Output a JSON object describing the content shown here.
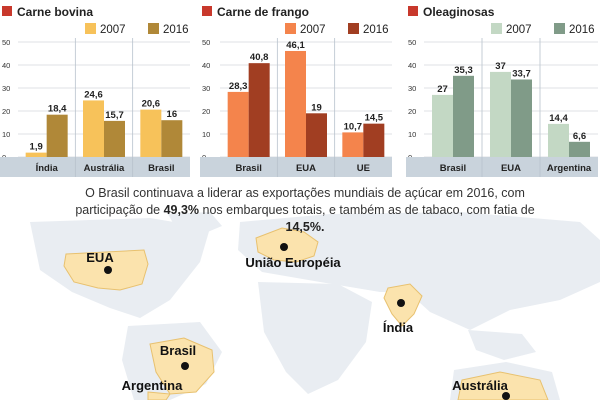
{
  "colors": {
    "bar_axis_bg": "#c9d3dc",
    "title_square": "#c8382c",
    "map_land": "#e9edf2",
    "region_fill": "#fbe3ad",
    "region_stroke": "#e8c16f",
    "city_dot": "#111111"
  },
  "chart_data": [
    {
      "type": "bar",
      "title": "Carne bovina",
      "categories": [
        "Índia",
        "Austrália",
        "Brasil"
      ],
      "series": [
        {
          "name": "2007",
          "color": "#f7c25a",
          "values": [
            1.9,
            24.6,
            20.6
          ],
          "labels": [
            "1,9",
            "24,6",
            "20,6"
          ]
        },
        {
          "name": "2016",
          "color": "#b08838",
          "values": [
            18.4,
            15.7,
            16
          ],
          "labels": [
            "18,4",
            "15,7",
            "16"
          ]
        }
      ],
      "yticks": [
        "0",
        "10",
        "20",
        "30",
        "40",
        "50"
      ],
      "ylim": [
        0,
        50
      ]
    },
    {
      "type": "bar",
      "title": "Carne de frango",
      "categories": [
        "Brasil",
        "EUA",
        "UE"
      ],
      "series": [
        {
          "name": "2007",
          "color": "#f4844c",
          "values": [
            28.3,
            46.1,
            10.7
          ],
          "labels": [
            "28,3",
            "46,1",
            "10,7"
          ]
        },
        {
          "name": "2016",
          "color": "#a13e22",
          "values": [
            40.8,
            19,
            14.5
          ],
          "labels": [
            "40,8",
            "19",
            "14,5"
          ]
        }
      ],
      "yticks": [
        "0",
        "10",
        "20",
        "30",
        "40",
        "50"
      ],
      "ylim": [
        0,
        50
      ]
    },
    {
      "type": "bar",
      "title": "Oleaginosas",
      "categories": [
        "Brasil",
        "EUA",
        "Argentina"
      ],
      "series": [
        {
          "name": "2007",
          "color": "#c3d8c4",
          "values": [
            27,
            37,
            14.4
          ],
          "labels": [
            "27",
            "37",
            "14,4"
          ]
        },
        {
          "name": "2016",
          "color": "#809b88",
          "values": [
            35.3,
            33.7,
            6.6
          ],
          "labels": [
            "35,3",
            "33,7",
            "6,6"
          ]
        }
      ],
      "yticks": [
        "0",
        "10",
        "20",
        "30",
        "40",
        "50"
      ],
      "ylim": [
        0,
        50
      ]
    }
  ],
  "caption": {
    "part1": "O Brasil continuava a liderar as exportações mundiais de açúcar em 2016, com participação de ",
    "bold1": "49,3%",
    "part2": " nos embarques totais, e também as de tabaco, com fatia de ",
    "bold2": "14,5%."
  },
  "map": {
    "labels": [
      {
        "key": "eua",
        "text": "EUA"
      },
      {
        "key": "ue",
        "text": "União Européia"
      },
      {
        "key": "india",
        "text": "Índia"
      },
      {
        "key": "brasil",
        "text": "Brasil"
      },
      {
        "key": "argentina",
        "text": "Argentina"
      },
      {
        "key": "australia",
        "text": "Austrália"
      }
    ]
  }
}
